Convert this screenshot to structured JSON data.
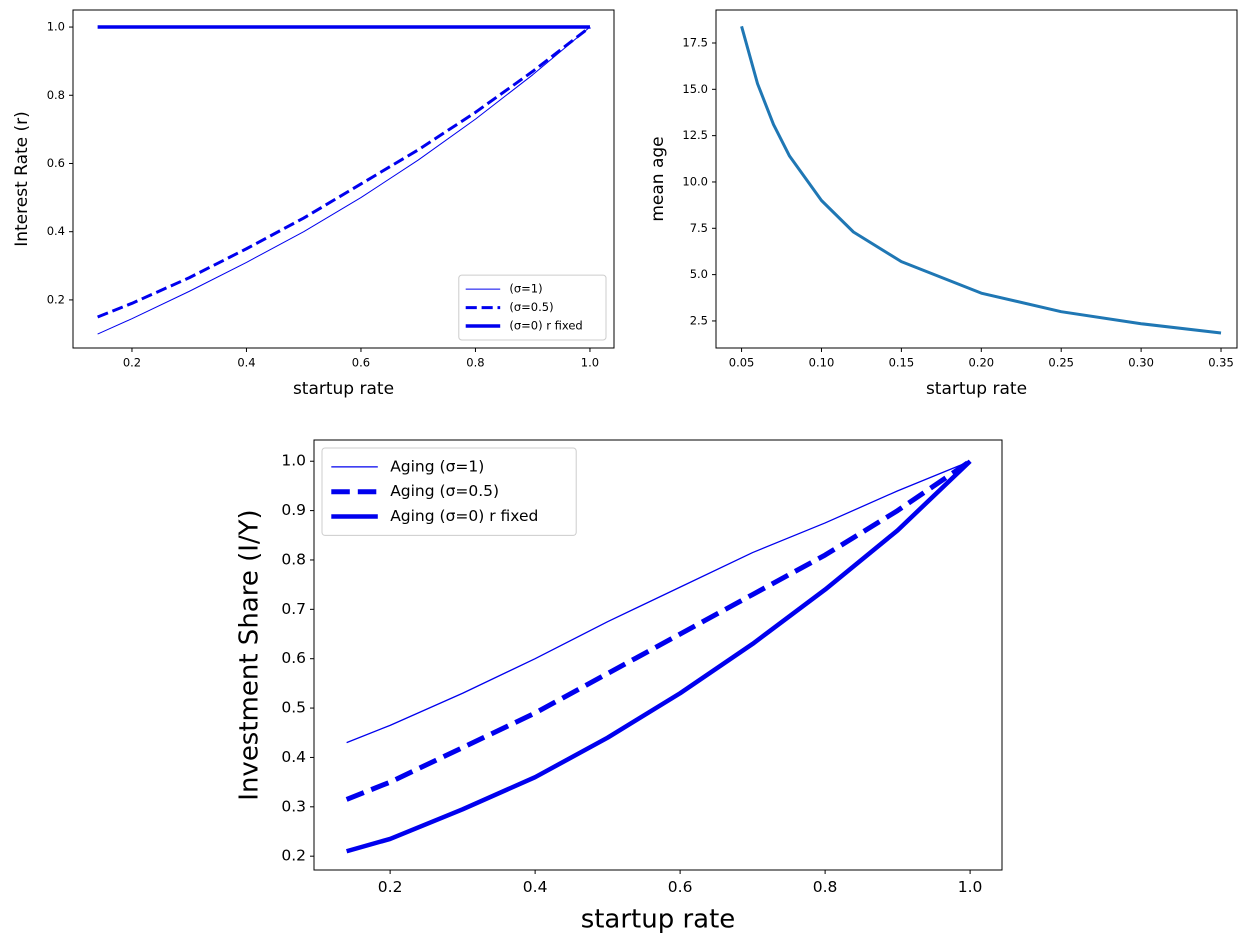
{
  "chart_data": [
    {
      "type": "line",
      "xlabel": "startup rate",
      "ylabel": "Interest Rate (r)",
      "x": [
        0.14,
        0.2,
        0.3,
        0.4,
        0.5,
        0.6,
        0.7,
        0.8,
        0.9,
        1.0
      ],
      "series": [
        {
          "name": "(σ=1)",
          "color": "#0000ee",
          "linestyle": "solid",
          "linewidth": 1,
          "values": [
            0.1,
            0.145,
            0.225,
            0.31,
            0.4,
            0.5,
            0.61,
            0.73,
            0.86,
            1.0
          ]
        },
        {
          "name": "(σ=0.5)",
          "color": "#0000ee",
          "linestyle": "dashed",
          "linewidth": 3,
          "values": [
            0.15,
            0.19,
            0.265,
            0.35,
            0.44,
            0.54,
            0.64,
            0.75,
            0.87,
            1.0
          ]
        },
        {
          "name": "(σ=0) r fixed",
          "color": "#0000ee",
          "linestyle": "solid",
          "linewidth": 3.5,
          "values": [
            1,
            1,
            1,
            1,
            1,
            1,
            1,
            1,
            1,
            1
          ]
        }
      ],
      "xlim": [
        0.097,
        1.042
      ],
      "ylim": [
        0.059,
        1.05
      ],
      "xticks": [
        0.2,
        0.4,
        0.6,
        0.8,
        {
          "value": 1,
          "label": "1.0"
        }
      ],
      "yticks": [
        0.2,
        0.4,
        0.6,
        0.8,
        {
          "value": 1,
          "label": "1.0"
        }
      ],
      "legend": "lower right",
      "grid": false
    },
    {
      "type": "line",
      "xlabel": "startup rate",
      "ylabel": "mean age",
      "x": [
        0.05,
        0.06,
        0.07,
        0.08,
        0.1,
        0.12,
        0.15,
        0.2,
        0.25,
        0.3,
        0.35
      ],
      "series": [
        {
          "color": "#1f77b4",
          "linestyle": "solid",
          "linewidth": 3,
          "values": [
            18.4,
            15.3,
            13.1,
            11.4,
            9.0,
            7.3,
            5.7,
            4.0,
            3.0,
            2.35,
            1.85
          ]
        }
      ],
      "xlim": [
        0.034,
        0.36
      ],
      "ylim": [
        1.04,
        19.28
      ],
      "xticks": [
        0.05,
        {
          "value": 0.1,
          "label": "0.10"
        },
        0.15,
        {
          "value": 0.2,
          "label": "0.20"
        },
        0.25,
        {
          "value": 0.3,
          "label": "0.30"
        },
        0.35
      ],
      "yticks": [
        2.5,
        {
          "value": 5,
          "label": "5.0"
        },
        7.5,
        {
          "value": 10,
          "label": "10.0"
        },
        12.5,
        {
          "value": 15,
          "label": "15.0"
        },
        17.5
      ],
      "grid": false
    },
    {
      "type": "line",
      "xlabel": "startup rate",
      "ylabel": "Investment Share (I/Y)",
      "x": [
        0.14,
        0.2,
        0.3,
        0.4,
        0.5,
        0.6,
        0.7,
        0.8,
        0.9,
        1.0
      ],
      "series": [
        {
          "name": "Aging (σ=1)",
          "color": "#0000ee",
          "linestyle": "solid",
          "linewidth": 1.3,
          "values": [
            0.43,
            0.465,
            0.53,
            0.6,
            0.675,
            0.745,
            0.815,
            0.875,
            0.94,
            1.0
          ]
        },
        {
          "name": "Aging (σ=0.5)",
          "color": "#0000ee",
          "linestyle": "dashed",
          "linewidth": 5,
          "values": [
            0.315,
            0.35,
            0.42,
            0.49,
            0.57,
            0.65,
            0.73,
            0.81,
            0.9,
            1.0
          ]
        },
        {
          "name": "Aging (σ=0) r fixed",
          "color": "#0000ee",
          "linestyle": "solid",
          "linewidth": 4.5,
          "values": [
            0.21,
            0.235,
            0.295,
            0.36,
            0.44,
            0.53,
            0.63,
            0.74,
            0.86,
            1.0
          ]
        }
      ],
      "xlim": [
        0.095,
        1.044
      ],
      "ylim": [
        0.172,
        1.043
      ],
      "xticks": [
        0.2,
        0.4,
        0.6,
        0.8,
        {
          "value": 1,
          "label": "1.0"
        }
      ],
      "yticks": [
        0.2,
        0.3,
        0.4,
        0.5,
        0.6,
        0.7,
        0.8,
        0.9,
        {
          "value": 1,
          "label": "1.0"
        }
      ],
      "legend": "upper left",
      "grid": false
    }
  ]
}
